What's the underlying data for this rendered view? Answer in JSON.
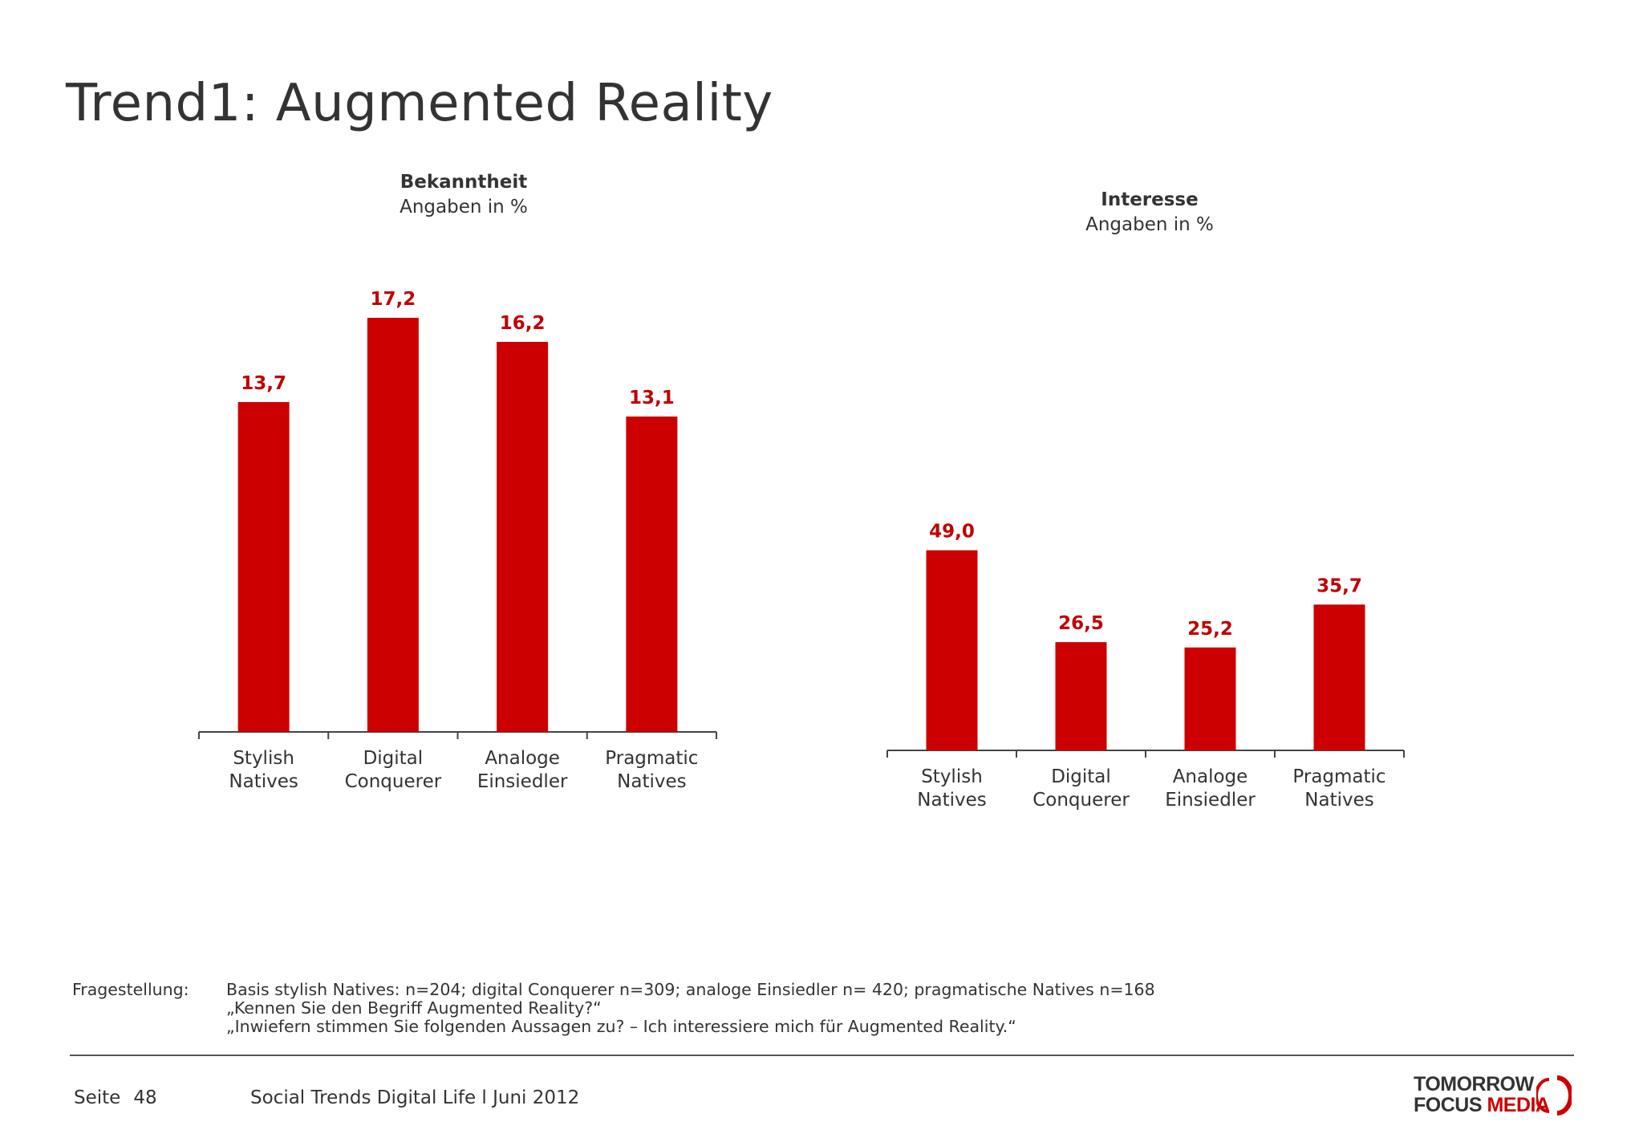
{
  "title": "Trend1: Augmented Reality",
  "colors": {
    "bar": "#cc0000",
    "value_label": "#c00000",
    "axis": "#444444",
    "text": "#333333"
  },
  "chart_data": [
    {
      "type": "bar",
      "title": "Bekanntheit",
      "subtitle": "Angaben in %",
      "categories": [
        "Stylish Natives",
        "Digital Conquerer",
        "Analoge Einsiedler",
        "Pragmatic Natives"
      ],
      "category_lines": [
        [
          "Stylish",
          "Natives"
        ],
        [
          "Digital",
          "Conquerer"
        ],
        [
          "Analoge",
          "Einsiedler"
        ],
        [
          "Pragmatic",
          "Natives"
        ]
      ],
      "values": [
        13.7,
        17.2,
        16.2,
        13.1
      ],
      "value_labels": [
        "13,7",
        "17,2",
        "16,2",
        "13,1"
      ],
      "ylim": [
        0,
        20
      ],
      "grid": false,
      "legend": "none"
    },
    {
      "type": "bar",
      "title": "Interesse",
      "subtitle": "Angaben in %",
      "categories": [
        "Stylish Natives",
        "Digital Conquerer",
        "Analoge Einsiedler",
        "Pragmatic Natives"
      ],
      "category_lines": [
        [
          "Stylish",
          "Natives"
        ],
        [
          "Digital",
          "Conquerer"
        ],
        [
          "Analoge",
          "Einsiedler"
        ],
        [
          "Pragmatic",
          "Natives"
        ]
      ],
      "values": [
        49.0,
        26.5,
        25.2,
        35.7
      ],
      "value_labels": [
        "49,0",
        "26,5",
        "25,2",
        "35,7"
      ],
      "ylim": [
        0,
        90
      ],
      "grid": false,
      "legend": "none"
    }
  ],
  "fragestellung": {
    "label": "Fragestellung:",
    "lines": [
      "Basis stylish Natives: n=204; digital Conquerer n=309; analoge Einsiedler n= 420; pragmatische Natives n=168",
      "„Kennen Sie den Begriff Augmented Reality?“",
      "„Inwiefern stimmen Sie folgenden Aussagen zu? – Ich interessiere mich für Augmented Reality.“"
    ]
  },
  "footer": {
    "page_label": "Seite",
    "page_number": "48",
    "title": "Social Trends Digital Life l Juni 2012"
  },
  "logo": {
    "line1": "TOMORROW",
    "line2a": "FOCUS",
    "line2b": "MEDIA"
  }
}
